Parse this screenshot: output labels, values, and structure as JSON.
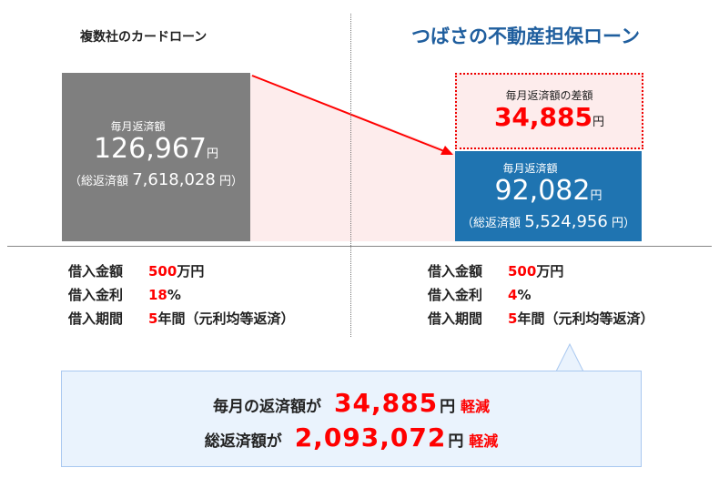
{
  "left": {
    "title": "複数社のカードローン",
    "monthly_label": "毎月返済額",
    "monthly_value": "126,967",
    "yen": "円",
    "total_prefix": "（総返済額",
    "total_value": "7,618,028",
    "total_suffix": "円）",
    "terms": [
      {
        "key": "借入金額",
        "value": "500",
        "unit": "万円"
      },
      {
        "key": "借入金利",
        "value": "18",
        "unit": "%"
      },
      {
        "key": "借入期間",
        "value": "5",
        "unit": "年間（元利均等返済）"
      }
    ]
  },
  "right": {
    "title": "つばさの不動産担保ローン",
    "diff_label": "毎月返済額の差額",
    "diff_value": "34,885",
    "monthly_label": "毎月返済額",
    "monthly_value": "92,082",
    "yen": "円",
    "total_prefix": "（総返済額",
    "total_value": "5,524,956",
    "total_suffix": "円）",
    "terms": [
      {
        "key": "借入金額",
        "value": "500",
        "unit": "万円"
      },
      {
        "key": "借入金利",
        "value": "4",
        "unit": "%"
      },
      {
        "key": "借入期間",
        "value": "5",
        "unit": "年間（元利均等返済）"
      }
    ]
  },
  "summary": {
    "line1_prefix": "毎月の返済額が",
    "line1_value": "34,885",
    "line2_prefix": "総返済額が",
    "line2_value": "2,093,072",
    "yen": "円",
    "reduce": "軽減"
  },
  "colors": {
    "accent_red": "#ff0000",
    "blue": "#1f74b1",
    "gray": "#7f7f7f",
    "pink": "#fdecec",
    "callout_bg": "#eaf3fd"
  }
}
